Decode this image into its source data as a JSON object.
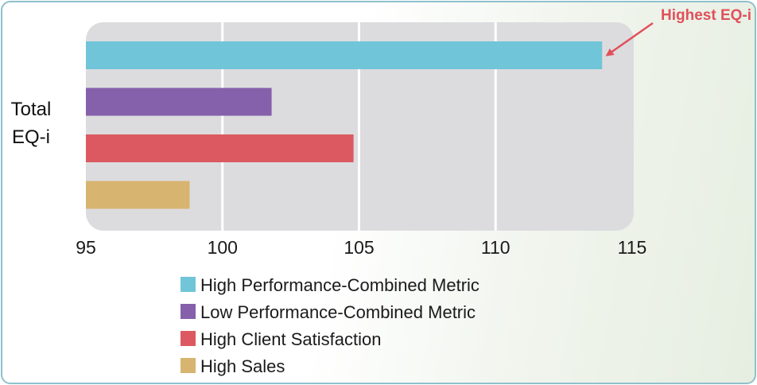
{
  "chart_data": {
    "type": "bar",
    "orientation": "horizontal",
    "category_label_lines": [
      "Total",
      "EQ-i"
    ],
    "series": [
      {
        "name": "High Performance-Combined Metric",
        "value": 113.9,
        "color": "#71c5d8"
      },
      {
        "name": "Low Performance-Combined Metric",
        "value": 101.8,
        "color": "#8560ab"
      },
      {
        "name": "High Client Satisfaction",
        "value": 104.8,
        "color": "#dc5961"
      },
      {
        "name": "High Sales",
        "value": 98.8,
        "color": "#d7b470"
      }
    ],
    "xlim": [
      95,
      115
    ],
    "xticks": [
      "95",
      "100",
      "105",
      "110",
      "115"
    ],
    "grid": "vertical",
    "legend_position": "bottom",
    "annotation": {
      "text": "Highest EQ-i",
      "points_to_series": 0,
      "color": "#e0505a"
    },
    "plot_background": "#dcdcdf"
  }
}
